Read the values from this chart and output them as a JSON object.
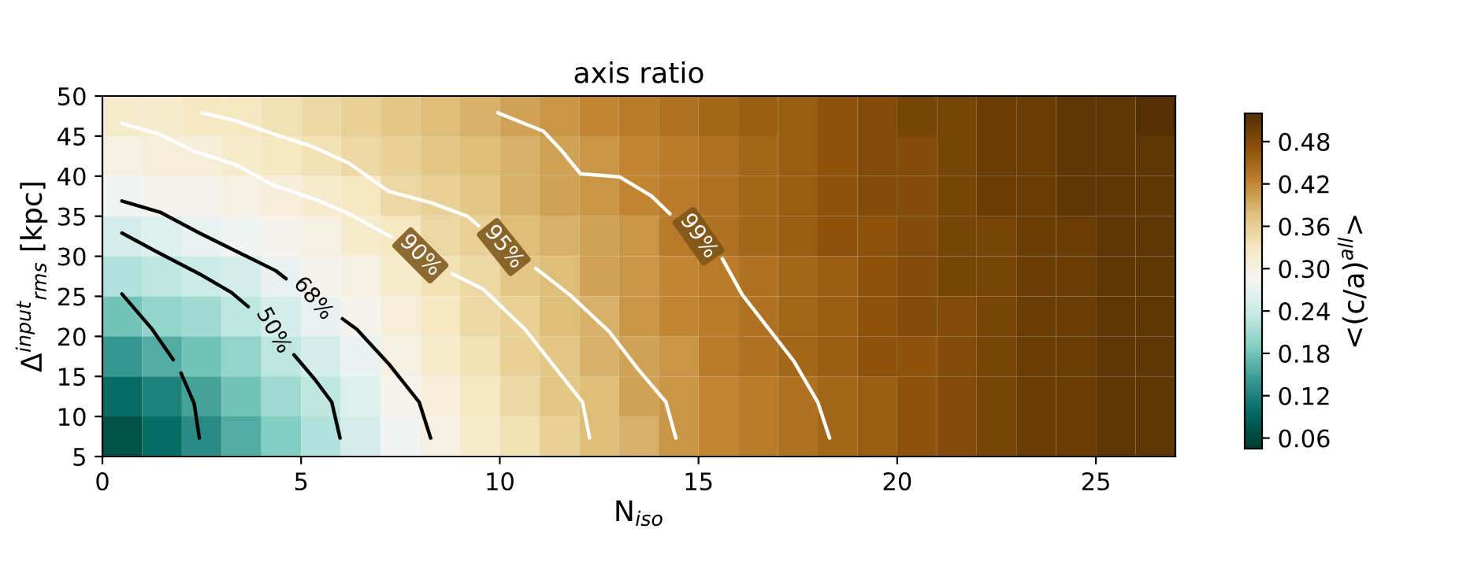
{
  "chart_data": {
    "type": "heatmap",
    "title": "axis ratio",
    "xlabel": "N$_{iso}$",
    "ylabel": "Δ$^{input}$$_{rms}$ [kpc]",
    "clabel": "<(c/a)$^{all}$>",
    "xlim": [
      0,
      27
    ],
    "ylim": [
      5,
      50
    ],
    "xticks": [
      0,
      5,
      10,
      15,
      20,
      25
    ],
    "yticks": [
      5,
      10,
      15,
      20,
      25,
      30,
      35,
      40,
      45,
      50
    ],
    "clim": [
      0.045,
      0.52
    ],
    "cticks": [
      0.06,
      0.12,
      0.18,
      0.24,
      {
        "value": 0.3,
        "label": "0.30"
      },
      0.36,
      0.42,
      0.48
    ],
    "cells": [
      [
        0.32,
        0.32,
        0.33,
        0.33,
        0.34,
        0.35,
        0.36,
        0.37,
        0.38,
        0.39,
        0.4,
        0.41,
        0.42,
        0.43,
        0.44,
        0.45,
        0.46,
        0.46,
        0.47,
        0.48,
        0.49,
        0.49,
        0.5,
        0.5,
        0.51,
        0.51,
        0.52
      ],
      [
        0.3,
        0.31,
        0.31,
        0.32,
        0.33,
        0.34,
        0.35,
        0.36,
        0.37,
        0.38,
        0.39,
        0.4,
        0.41,
        0.42,
        0.43,
        0.44,
        0.45,
        0.46,
        0.47,
        0.48,
        0.48,
        0.49,
        0.5,
        0.5,
        0.51,
        0.51,
        0.51
      ],
      [
        0.28,
        0.29,
        0.29,
        0.3,
        0.31,
        0.32,
        0.33,
        0.35,
        0.36,
        0.37,
        0.39,
        0.4,
        0.41,
        0.42,
        0.43,
        0.44,
        0.45,
        0.46,
        0.47,
        0.48,
        0.48,
        0.49,
        0.5,
        0.5,
        0.51,
        0.51,
        0.51
      ],
      [
        0.25,
        0.26,
        0.27,
        0.28,
        0.29,
        0.3,
        0.32,
        0.33,
        0.35,
        0.36,
        0.38,
        0.39,
        0.4,
        0.41,
        0.43,
        0.44,
        0.45,
        0.46,
        0.47,
        0.47,
        0.48,
        0.49,
        0.49,
        0.5,
        0.5,
        0.51,
        0.51
      ],
      [
        0.22,
        0.23,
        0.24,
        0.25,
        0.27,
        0.29,
        0.3,
        0.32,
        0.34,
        0.35,
        0.37,
        0.38,
        0.4,
        0.41,
        0.42,
        0.43,
        0.44,
        0.45,
        0.46,
        0.47,
        0.48,
        0.49,
        0.49,
        0.5,
        0.5,
        0.51,
        0.51
      ],
      [
        0.18,
        0.2,
        0.21,
        0.23,
        0.25,
        0.27,
        0.29,
        0.31,
        0.33,
        0.35,
        0.36,
        0.38,
        0.39,
        0.41,
        0.42,
        0.43,
        0.44,
        0.45,
        0.46,
        0.47,
        0.48,
        0.48,
        0.49,
        0.5,
        0.5,
        0.51,
        0.51
      ],
      [
        0.14,
        0.16,
        0.18,
        0.2,
        0.23,
        0.25,
        0.27,
        0.3,
        0.32,
        0.34,
        0.36,
        0.37,
        0.39,
        0.4,
        0.41,
        0.43,
        0.44,
        0.45,
        0.46,
        0.47,
        0.47,
        0.48,
        0.49,
        0.5,
        0.5,
        0.51,
        0.51
      ],
      [
        0.1,
        0.12,
        0.15,
        0.18,
        0.21,
        0.23,
        0.26,
        0.29,
        0.31,
        0.33,
        0.35,
        0.37,
        0.38,
        0.4,
        0.41,
        0.42,
        0.43,
        0.44,
        0.45,
        0.46,
        0.47,
        0.48,
        0.49,
        0.5,
        0.5,
        0.51,
        0.51
      ],
      [
        0.07,
        0.1,
        0.13,
        0.16,
        0.19,
        0.22,
        0.25,
        0.28,
        0.3,
        0.32,
        0.34,
        0.36,
        0.38,
        0.39,
        0.41,
        0.42,
        0.43,
        0.44,
        0.45,
        0.46,
        0.47,
        0.48,
        0.49,
        0.5,
        0.5,
        0.51,
        0.51
      ]
    ],
    "series": [
      {
        "type": "line",
        "color": "#000000",
        "x": [
          0.49,
          1.25,
          1.78,
          1.9,
          1.98,
          2.31,
          2.44
        ],
        "values": [
          25.3,
          20.9,
          17.1,
          null,
          15.4,
          11.6,
          7.3
        ]
      },
      {
        "type": "line",
        "name": "50%",
        "color": "#000000",
        "x": [
          0.49,
          1.39,
          2.44,
          3.24,
          3.67,
          4.3,
          4.82,
          5.35,
          5.77,
          5.98
        ],
        "values": [
          32.9,
          30.5,
          27.8,
          25.5,
          23.7,
          null,
          17.7,
          14.6,
          11.8,
          7.3
        ]
      },
      {
        "type": "line",
        "name": "68%",
        "color": "#000000",
        "x": [
          0.49,
          1.45,
          2.44,
          3.5,
          4.36,
          4.62,
          5.3,
          6.04,
          6.4,
          7.2,
          7.97,
          8.26
        ],
        "values": [
          36.9,
          35.5,
          32.9,
          30.3,
          28.2,
          27.2,
          null,
          22.2,
          20.9,
          16.6,
          11.8,
          7.3
        ]
      },
      {
        "type": "line",
        "name": "90%",
        "color": "#ffffff",
        "x": [
          0.49,
          1.45,
          2.31,
          3.37,
          4.29,
          5.35,
          6.21,
          7.27,
          8.0,
          8.81,
          9.58,
          10.63,
          11.36,
          12.08,
          12.26
        ],
        "values": [
          46.6,
          45.2,
          43.1,
          41.4,
          38.9,
          37.1,
          35.3,
          32.4,
          null,
          27.8,
          25.9,
          20.9,
          16.3,
          11.8,
          7.3
        ]
      },
      {
        "type": "line",
        "name": "95%",
        "color": "#ffffff",
        "x": [
          2.51,
          3.37,
          4.29,
          5.28,
          6.21,
          7.2,
          8.26,
          9.18,
          9.47,
          10.1,
          10.9,
          11.76,
          12.75,
          13.48,
          14.18,
          14.43
        ],
        "values": [
          47.9,
          46.9,
          45.3,
          43.7,
          41.6,
          38.1,
          36.7,
          35.0,
          33.8,
          null,
          28.5,
          25.2,
          20.6,
          15.9,
          11.8,
          7.3
        ]
      },
      {
        "type": "line",
        "name": "99%",
        "color": "#ffffff",
        "x": [
          9.95,
          11.1,
          11.57,
          12.03,
          13.02,
          13.82,
          14.28,
          15.0,
          15.6,
          16.1,
          17.4,
          18.0,
          18.3
        ],
        "values": [
          47.9,
          45.6,
          43.1,
          40.3,
          39.9,
          37.5,
          35.3,
          null,
          29.7,
          25.2,
          16.9,
          11.8,
          7.3
        ]
      }
    ]
  }
}
